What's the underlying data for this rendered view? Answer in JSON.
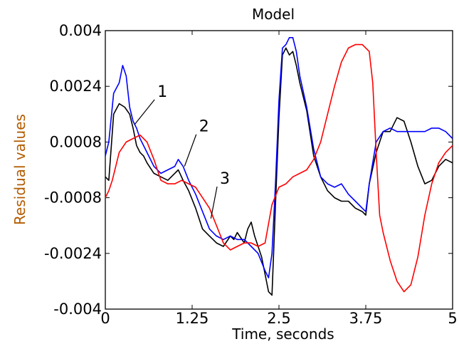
{
  "chart_data": {
    "type": "line",
    "title": "Model",
    "xlabel": "Time, seconds",
    "ylabel": "Residual values",
    "xlim": [
      0,
      5
    ],
    "ylim": [
      -0.004,
      0.004
    ],
    "x_ticks": [
      0,
      1.25,
      2.5,
      3.75,
      5
    ],
    "x_tick_labels": [
      "0",
      "1.25",
      "2.5",
      "3.75",
      "5"
    ],
    "y_ticks": [
      -0.004,
      -0.0024,
      -0.0008,
      0.0008,
      0.0024,
      0.004
    ],
    "y_tick_labels": [
      "-0.004",
      "-0.0024",
      "-0.0008",
      "0.0008",
      "0.0024",
      "0.004"
    ],
    "grid": false,
    "legend": "none",
    "colors": {
      "ylabel": "#b35c00",
      "axes": "#000000"
    },
    "series": [
      {
        "color": "#000000",
        "x": [
          0,
          0.05,
          0.12,
          0.2,
          0.28,
          0.35,
          0.4,
          0.45,
          0.5,
          0.55,
          0.6,
          0.7,
          0.8,
          0.9,
          1.0,
          1.05,
          1.12,
          1.2,
          1.3,
          1.4,
          1.5,
          1.6,
          1.7,
          1.8,
          1.85,
          1.9,
          2.0,
          2.05,
          2.1,
          2.15,
          2.2,
          2.25,
          2.3,
          2.35,
          2.4,
          2.45,
          2.5,
          2.55,
          2.6,
          2.65,
          2.7,
          2.75,
          2.8,
          2.9,
          3.0,
          3.1,
          3.2,
          3.3,
          3.4,
          3.5,
          3.6,
          3.7,
          3.75,
          3.8,
          3.9,
          4.0,
          4.1,
          4.2,
          4.3,
          4.4,
          4.5,
          4.6,
          4.7,
          4.8,
          4.9,
          5.0
        ],
        "values": [
          -0.0002,
          -0.0003,
          0.0016,
          0.0019,
          0.0018,
          0.0016,
          0.0012,
          0.0007,
          0.0005,
          0.0004,
          0.0002,
          -0.0001,
          -0.0002,
          -0.0003,
          -0.0001,
          0.0,
          -0.0003,
          -0.0006,
          -0.0011,
          -0.0017,
          -0.0019,
          -0.0021,
          -0.0022,
          -0.0019,
          -0.002,
          -0.0018,
          -0.0021,
          -0.0017,
          -0.0015,
          -0.0019,
          -0.0022,
          -0.0025,
          -0.003,
          -0.0035,
          -0.0036,
          -0.001,
          0.0015,
          0.0033,
          0.0035,
          0.0033,
          0.0034,
          0.003,
          0.0025,
          0.0017,
          0.0004,
          -0.0002,
          -0.0006,
          -0.0008,
          -0.0009,
          -0.0009,
          -0.0011,
          -0.0012,
          -0.0013,
          -0.0004,
          0.0005,
          0.0011,
          0.0011,
          0.0015,
          0.0014,
          0.0008,
          0.0001,
          -0.0004,
          -0.0003,
          0.0001,
          0.0003,
          0.0002
        ]
      },
      {
        "color": "#0000ff",
        "x": [
          0,
          0.05,
          0.12,
          0.2,
          0.25,
          0.3,
          0.35,
          0.4,
          0.45,
          0.5,
          0.6,
          0.7,
          0.8,
          0.9,
          1.0,
          1.05,
          1.12,
          1.2,
          1.3,
          1.4,
          1.5,
          1.6,
          1.7,
          1.8,
          1.9,
          2.0,
          2.05,
          2.1,
          2.2,
          2.3,
          2.35,
          2.4,
          2.45,
          2.5,
          2.55,
          2.6,
          2.65,
          2.7,
          2.75,
          2.8,
          2.9,
          3.0,
          3.1,
          3.2,
          3.3,
          3.4,
          3.5,
          3.6,
          3.7,
          3.75,
          3.8,
          3.9,
          4.0,
          4.1,
          4.2,
          4.3,
          4.4,
          4.5,
          4.6,
          4.7,
          4.8,
          4.9,
          5.0
        ],
        "values": [
          0.0004,
          0.0008,
          0.0022,
          0.0025,
          0.003,
          0.0027,
          0.0018,
          0.0014,
          0.0012,
          0.0009,
          0.0005,
          0.0001,
          -0.0001,
          0.0,
          0.0001,
          0.0003,
          0.0001,
          -0.0003,
          -0.0007,
          -0.0012,
          -0.0017,
          -0.0019,
          -0.002,
          -0.0019,
          -0.002,
          -0.002,
          -0.0021,
          -0.0022,
          -0.0024,
          -0.0029,
          -0.0031,
          -0.0024,
          -0.0004,
          0.002,
          0.0035,
          0.0036,
          0.0038,
          0.0038,
          0.0034,
          0.0027,
          0.0018,
          0.0006,
          -0.0002,
          -0.0004,
          -0.0005,
          -0.0004,
          -0.0007,
          -0.0009,
          -0.0011,
          -0.0012,
          -0.0004,
          0.0008,
          0.0011,
          0.0012,
          0.0011,
          0.0011,
          0.0011,
          0.0011,
          0.0011,
          0.0012,
          0.0012,
          0.0011,
          0.0009
        ]
      },
      {
        "color": "#ff0000",
        "x": [
          0,
          0.05,
          0.1,
          0.2,
          0.3,
          0.4,
          0.5,
          0.55,
          0.6,
          0.7,
          0.8,
          0.9,
          1.0,
          1.1,
          1.2,
          1.3,
          1.4,
          1.5,
          1.6,
          1.7,
          1.8,
          1.9,
          2.0,
          2.1,
          2.2,
          2.3,
          2.4,
          2.5,
          2.6,
          2.7,
          2.8,
          2.9,
          3.0,
          3.1,
          3.2,
          3.3,
          3.4,
          3.5,
          3.6,
          3.7,
          3.8,
          3.85,
          3.9,
          3.95,
          4.0,
          4.05,
          4.1,
          4.2,
          4.3,
          4.4,
          4.5,
          4.6,
          4.7,
          4.8,
          4.9,
          5.0
        ],
        "values": [
          -0.0008,
          -0.0006,
          -0.0003,
          0.0005,
          0.0008,
          0.0009,
          0.001,
          0.0009,
          0.0008,
          0.0003,
          -0.0003,
          -0.0004,
          -0.0004,
          -0.0003,
          -0.0004,
          -0.0005,
          -0.0008,
          -0.0011,
          -0.0016,
          -0.0021,
          -0.0023,
          -0.0022,
          -0.0021,
          -0.0021,
          -0.0022,
          -0.0021,
          -0.001,
          -0.0005,
          -0.0004,
          -0.0002,
          -0.0001,
          0.0,
          0.0003,
          0.0008,
          0.0016,
          0.0024,
          0.0031,
          0.0035,
          0.0036,
          0.0036,
          0.0034,
          0.0025,
          0.0005,
          -0.0013,
          -0.0018,
          -0.0022,
          -0.0026,
          -0.0032,
          -0.0035,
          -0.0033,
          -0.0025,
          -0.0013,
          -0.0004,
          0.0002,
          0.0005,
          0.0007
        ]
      }
    ],
    "annotations": [
      {
        "text": "1",
        "x": 0.75,
        "y": 0.0021,
        "line_to_x": 0.42,
        "line_to_y": 0.0013
      },
      {
        "text": "2",
        "x": 1.35,
        "y": 0.0011,
        "line_to_x": 1.14,
        "line_to_y": 0.0001
      },
      {
        "text": "3",
        "x": 1.65,
        "y": -0.0004,
        "line_to_x": 1.52,
        "line_to_y": -0.0014
      }
    ]
  }
}
